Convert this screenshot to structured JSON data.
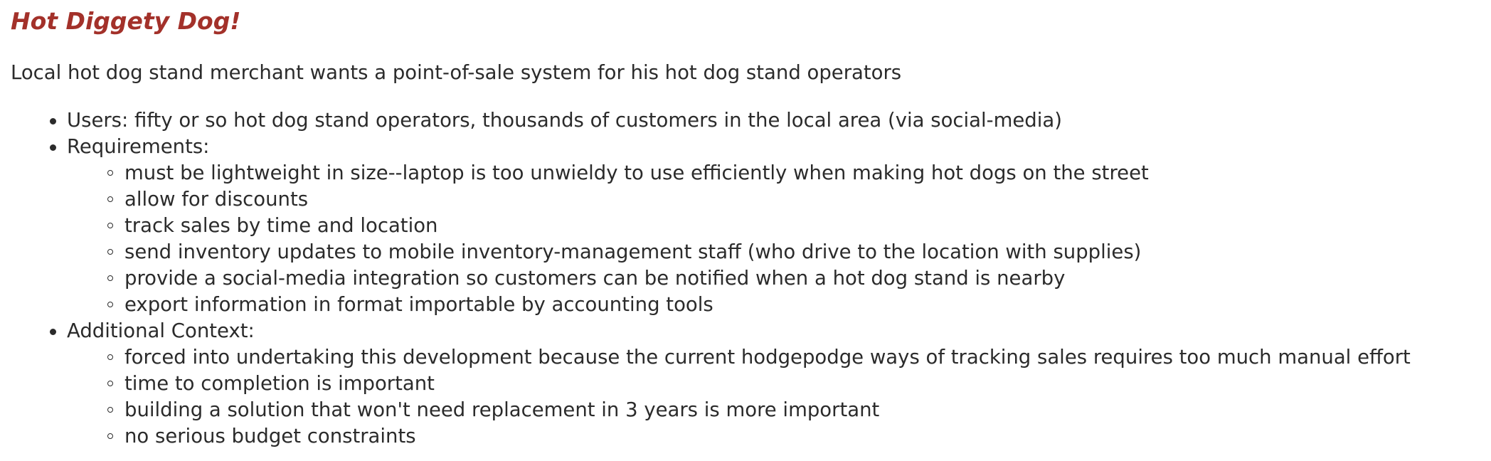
{
  "title": "Hot Diggety Dog!",
  "intro": "Local hot dog stand merchant wants a point-of-sale system for his hot dog stand operators",
  "items": [
    {
      "label": "Users: fifty or so hot dog stand operators, thousands of customers in the local area (via social-media)",
      "children": []
    },
    {
      "label": "Requirements:",
      "children": [
        "must be lightweight in size--laptop is too unwieldy to use efficiently when making hot dogs on the street",
        "allow for discounts",
        "track sales by time and location",
        "send inventory updates to mobile inventory-management staff (who drive to the location with supplies)",
        "provide a social-media integration so customers can be notified when a hot dog stand is nearby",
        "export information in format importable by accounting tools"
      ]
    },
    {
      "label": "Additional Context:",
      "children": [
        "forced into undertaking this development because the current hodgepodge ways of tracking sales requires too much manual effort",
        "time to completion is important",
        "building a solution that won't need replacement in 3 years is more important",
        "no serious budget constraints"
      ]
    }
  ],
  "colors": {
    "title": "#a3312a",
    "text": "#2b2b2b",
    "background": "#ffffff"
  }
}
